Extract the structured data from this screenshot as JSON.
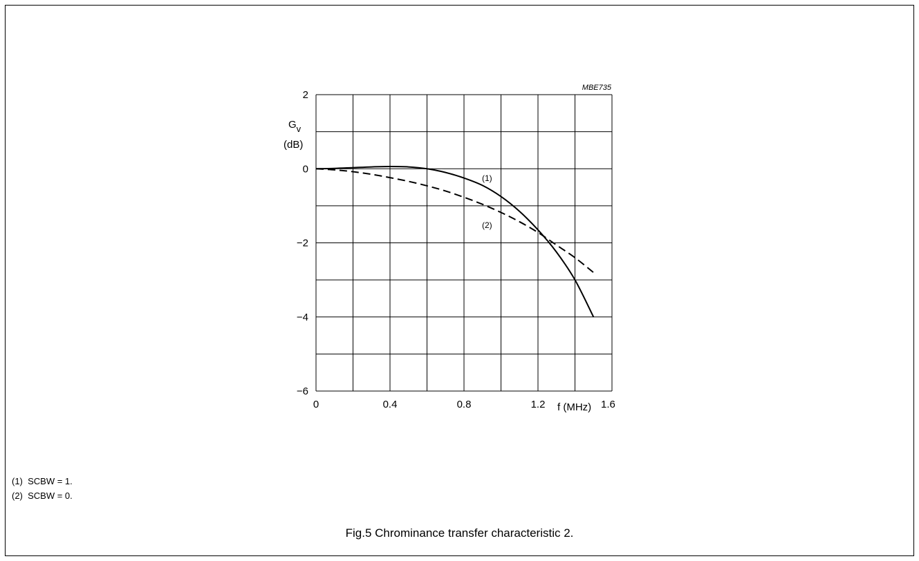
{
  "figure": {
    "code": "MBE735",
    "caption": "Fig.5  Chrominance transfer characteristic 2.",
    "notes": [
      "(1)  SCBW = 1.",
      "(2)  SCBW = 0."
    ]
  },
  "chart_data": {
    "type": "line",
    "title": "",
    "xlabel": "f (MHz)",
    "ylabel_symbol": "G",
    "ylabel_subscript": "v",
    "ylabel_unit": "(dB)",
    "xlim": [
      0,
      1.6
    ],
    "ylim": [
      -6,
      2
    ],
    "xticks": [
      "0",
      "0.4",
      "0.8",
      "1.2",
      "1.6"
    ],
    "yticks": [
      "2",
      "0",
      "−2",
      "−4",
      "−6"
    ],
    "grid": true,
    "series": [
      {
        "name": "(1)",
        "style": "solid",
        "color": "#000000",
        "x": [
          0,
          0.1,
          0.2,
          0.3,
          0.4,
          0.5,
          0.6,
          0.7,
          0.8,
          0.9,
          1.0,
          1.1,
          1.2,
          1.3,
          1.4,
          1.5
        ],
        "y": [
          0,
          0.01,
          0.03,
          0.05,
          0.06,
          0.05,
          0.0,
          -0.1,
          -0.25,
          -0.45,
          -0.75,
          -1.15,
          -1.65,
          -2.25,
          -3.0,
          -4.0
        ]
      },
      {
        "name": "(2)",
        "style": "dashed",
        "color": "#000000",
        "x": [
          0,
          0.1,
          0.2,
          0.3,
          0.4,
          0.5,
          0.6,
          0.7,
          0.8,
          0.9,
          1.0,
          1.1,
          1.2,
          1.3,
          1.4,
          1.5
        ],
        "y": [
          0,
          -0.03,
          -0.08,
          -0.15,
          -0.24,
          -0.34,
          -0.46,
          -0.6,
          -0.77,
          -0.96,
          -1.18,
          -1.43,
          -1.72,
          -2.06,
          -2.4,
          -2.8
        ]
      }
    ]
  }
}
